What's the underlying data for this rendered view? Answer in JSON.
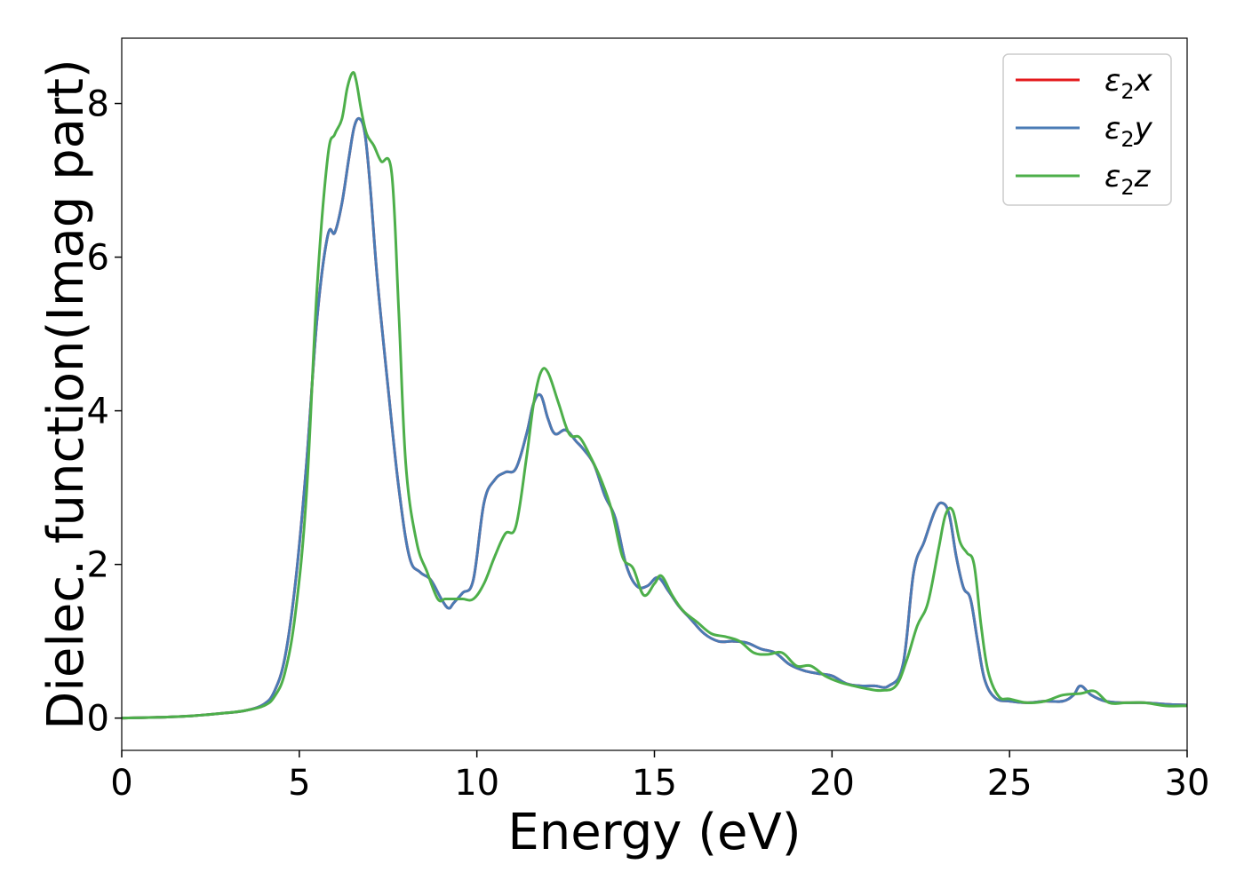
{
  "chart_data": {
    "type": "line",
    "xlabel": "Energy (eV)",
    "ylabel": "Dielec. function(Imag part)",
    "xlim": [
      0,
      30
    ],
    "ylim": [
      -0.42,
      8.85
    ],
    "xticks": [
      0,
      5,
      10,
      15,
      20,
      25,
      30
    ],
    "yticks": [
      0,
      2,
      4,
      6,
      8
    ],
    "grid": false,
    "legend_position": "top-right",
    "series": [
      {
        "name": "ε₂x",
        "legend_main": "ε",
        "legend_sub": "2",
        "legend_var": "x",
        "color": "#e41a1c",
        "x": [
          0,
          1,
          2,
          3,
          3.5,
          4,
          4.3,
          4.6,
          4.9,
          5.2,
          5.5,
          5.8,
          6.0,
          6.2,
          6.4,
          6.55,
          6.7,
          6.85,
          7.0,
          7.2,
          7.5,
          7.8,
          8.1,
          8.4,
          8.7,
          9.0,
          9.2,
          9.35,
          9.6,
          9.9,
          10.2,
          10.5,
          10.8,
          11.1,
          11.4,
          11.6,
          11.8,
          12.0,
          12.2,
          12.5,
          12.8,
          13.0,
          13.3,
          13.6,
          13.9,
          14.2,
          14.5,
          14.8,
          15.1,
          15.4,
          15.7,
          16.0,
          16.4,
          16.8,
          17.2,
          17.6,
          18.0,
          18.4,
          18.8,
          19.2,
          19.6,
          20.0,
          20.4,
          20.8,
          21.2,
          21.6,
          22.0,
          22.3,
          22.6,
          22.9,
          23.1,
          23.3,
          23.5,
          23.7,
          23.9,
          24.1,
          24.3,
          24.6,
          25.0,
          25.5,
          26.0,
          26.5,
          26.8,
          27.0,
          27.3,
          27.7,
          28.2,
          28.8,
          29.4,
          30.0
        ],
        "values": [
          0.0,
          0.01,
          0.03,
          0.07,
          0.1,
          0.18,
          0.35,
          0.8,
          1.8,
          3.3,
          5.2,
          6.28,
          6.32,
          6.7,
          7.3,
          7.7,
          7.8,
          7.6,
          6.9,
          5.7,
          4.3,
          3.0,
          2.1,
          1.9,
          1.8,
          1.55,
          1.43,
          1.5,
          1.63,
          1.8,
          2.8,
          3.1,
          3.2,
          3.25,
          3.7,
          4.1,
          4.2,
          3.9,
          3.7,
          3.75,
          3.6,
          3.5,
          3.3,
          2.9,
          2.6,
          2.0,
          1.72,
          1.72,
          1.83,
          1.65,
          1.45,
          1.3,
          1.1,
          1.0,
          1.0,
          0.98,
          0.9,
          0.85,
          0.7,
          0.62,
          0.58,
          0.55,
          0.45,
          0.42,
          0.42,
          0.42,
          0.7,
          1.9,
          2.3,
          2.7,
          2.8,
          2.65,
          2.1,
          1.7,
          1.55,
          1.0,
          0.5,
          0.26,
          0.22,
          0.2,
          0.22,
          0.22,
          0.3,
          0.42,
          0.3,
          0.22,
          0.2,
          0.2,
          0.18,
          0.17
        ]
      },
      {
        "name": "ε₂y",
        "legend_main": "ε",
        "legend_sub": "2",
        "legend_var": "y",
        "color": "#4a7bb5",
        "x": [
          0,
          1,
          2,
          3,
          3.5,
          4,
          4.3,
          4.6,
          4.9,
          5.2,
          5.5,
          5.8,
          6.0,
          6.2,
          6.4,
          6.55,
          6.7,
          6.85,
          7.0,
          7.2,
          7.5,
          7.8,
          8.1,
          8.4,
          8.7,
          9.0,
          9.2,
          9.35,
          9.6,
          9.9,
          10.2,
          10.5,
          10.8,
          11.1,
          11.4,
          11.6,
          11.8,
          12.0,
          12.2,
          12.5,
          12.8,
          13.0,
          13.3,
          13.6,
          13.9,
          14.2,
          14.5,
          14.8,
          15.1,
          15.4,
          15.7,
          16.0,
          16.4,
          16.8,
          17.2,
          17.6,
          18.0,
          18.4,
          18.8,
          19.2,
          19.6,
          20.0,
          20.4,
          20.8,
          21.2,
          21.6,
          22.0,
          22.3,
          22.6,
          22.9,
          23.1,
          23.3,
          23.5,
          23.7,
          23.9,
          24.1,
          24.3,
          24.6,
          25.0,
          25.5,
          26.0,
          26.5,
          26.8,
          27.0,
          27.3,
          27.7,
          28.2,
          28.8,
          29.4,
          30.0
        ],
        "values": [
          0.0,
          0.01,
          0.03,
          0.07,
          0.1,
          0.18,
          0.35,
          0.8,
          1.8,
          3.3,
          5.2,
          6.28,
          6.32,
          6.7,
          7.3,
          7.7,
          7.8,
          7.6,
          6.9,
          5.7,
          4.3,
          3.0,
          2.1,
          1.9,
          1.8,
          1.55,
          1.43,
          1.5,
          1.63,
          1.8,
          2.8,
          3.1,
          3.2,
          3.25,
          3.7,
          4.1,
          4.2,
          3.9,
          3.7,
          3.75,
          3.6,
          3.5,
          3.3,
          2.9,
          2.6,
          2.0,
          1.72,
          1.72,
          1.83,
          1.65,
          1.45,
          1.3,
          1.1,
          1.0,
          1.0,
          0.98,
          0.9,
          0.85,
          0.7,
          0.62,
          0.58,
          0.55,
          0.45,
          0.42,
          0.42,
          0.42,
          0.7,
          1.9,
          2.3,
          2.7,
          2.8,
          2.65,
          2.1,
          1.7,
          1.55,
          1.0,
          0.5,
          0.26,
          0.22,
          0.2,
          0.22,
          0.22,
          0.3,
          0.42,
          0.3,
          0.22,
          0.2,
          0.2,
          0.18,
          0.17
        ]
      },
      {
        "name": "ε₂z",
        "legend_main": "ε",
        "legend_sub": "2",
        "legend_var": "z",
        "color": "#4daf4a",
        "x": [
          0,
          1,
          2,
          3,
          3.5,
          4,
          4.3,
          4.6,
          4.9,
          5.2,
          5.5,
          5.8,
          6.0,
          6.2,
          6.35,
          6.5,
          6.6,
          6.75,
          6.9,
          7.1,
          7.3,
          7.6,
          7.8,
          8.0,
          8.3,
          8.6,
          8.9,
          9.1,
          9.3,
          9.6,
          9.9,
          10.2,
          10.5,
          10.8,
          11.1,
          11.4,
          11.6,
          11.8,
          12.0,
          12.3,
          12.6,
          12.9,
          13.2,
          13.5,
          13.8,
          14.1,
          14.4,
          14.7,
          15.0,
          15.2,
          15.5,
          15.8,
          16.2,
          16.6,
          17.0,
          17.4,
          17.8,
          18.2,
          18.6,
          19.0,
          19.4,
          19.8,
          20.2,
          20.6,
          21.0,
          21.4,
          21.8,
          22.1,
          22.4,
          22.7,
          23.0,
          23.2,
          23.4,
          23.6,
          23.8,
          24.0,
          24.2,
          24.4,
          24.7,
          25.0,
          25.5,
          26.0,
          26.5,
          27.0,
          27.4,
          27.8,
          28.3,
          28.8,
          29.4,
          30.0
        ],
        "values": [
          0.0,
          0.01,
          0.03,
          0.07,
          0.1,
          0.16,
          0.28,
          0.6,
          1.4,
          2.9,
          5.6,
          7.3,
          7.6,
          7.8,
          8.2,
          8.4,
          8.3,
          7.9,
          7.6,
          7.45,
          7.25,
          7.1,
          5.3,
          3.3,
          2.3,
          1.9,
          1.55,
          1.55,
          1.55,
          1.55,
          1.55,
          1.75,
          2.1,
          2.4,
          2.5,
          3.4,
          4.1,
          4.5,
          4.5,
          4.1,
          3.7,
          3.65,
          3.4,
          3.1,
          2.7,
          2.1,
          1.95,
          1.6,
          1.75,
          1.85,
          1.6,
          1.4,
          1.25,
          1.1,
          1.06,
          1.0,
          0.85,
          0.83,
          0.85,
          0.68,
          0.68,
          0.55,
          0.47,
          0.42,
          0.38,
          0.36,
          0.42,
          0.75,
          1.2,
          1.5,
          2.2,
          2.65,
          2.7,
          2.3,
          2.15,
          2.0,
          1.2,
          0.6,
          0.28,
          0.25,
          0.2,
          0.22,
          0.3,
          0.32,
          0.35,
          0.2,
          0.2,
          0.2,
          0.16,
          0.16
        ]
      }
    ]
  }
}
